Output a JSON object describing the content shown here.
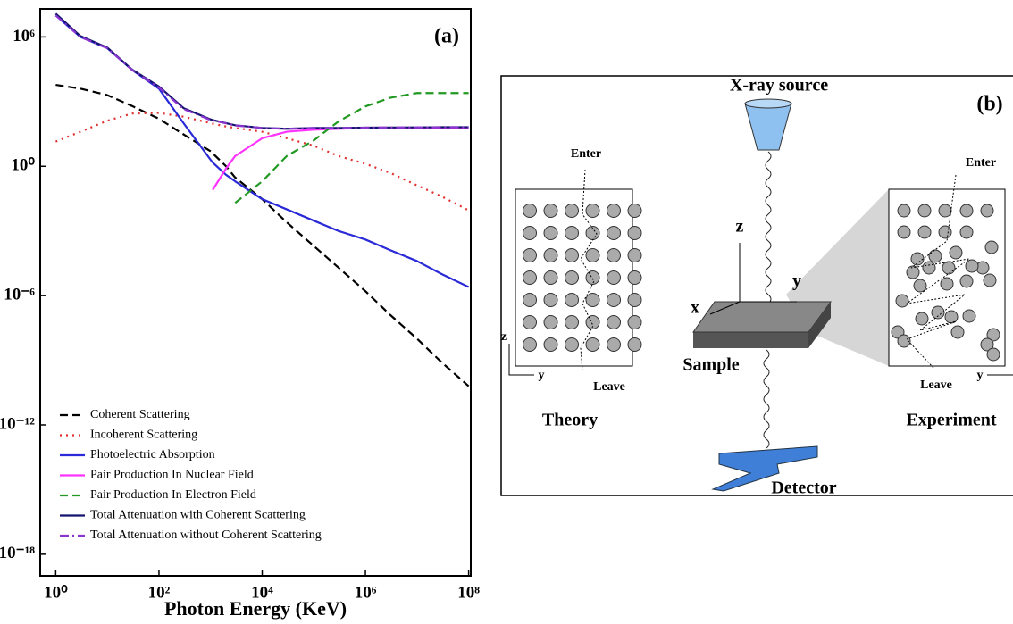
{
  "chart_data": {
    "type": "line",
    "label": "(a)",
    "xlabel": "Photon Energy (KeV)",
    "xscale": "log",
    "yscale": "log",
    "xlim": [
      0.5,
      110000000.0
    ],
    "ylim": [
      1e-19,
      20000000.0
    ],
    "xticks": [
      {
        "value": 1,
        "label": "10⁰"
      },
      {
        "value": 100,
        "label": "10²"
      },
      {
        "value": 10000,
        "label": "10⁴"
      },
      {
        "value": 1000000,
        "label": "10⁶"
      },
      {
        "value": 100000000,
        "label": "10⁸"
      }
    ],
    "yticks": [
      {
        "value": 1000000,
        "label": "10⁶"
      },
      {
        "value": 1,
        "label": "10⁰"
      },
      {
        "value": 1e-06,
        "label": "10⁻⁶"
      },
      {
        "value": 1e-12,
        "label": "10⁻¹²"
      },
      {
        "value": 1e-18,
        "label": "10⁻¹⁸"
      }
    ],
    "legend": "lower left",
    "x": [
      1,
      3,
      10,
      30,
      100,
      300,
      1000,
      1100,
      2000,
      3000,
      10000,
      30000,
      100000,
      300000,
      1000000,
      3000000,
      10000000,
      30000000,
      100000000
    ],
    "series": [
      {
        "name": "Coherent Scattering",
        "color": "#000000",
        "style": "dashed",
        "values": [
          6000,
          4000,
          2000,
          630,
          160,
          30,
          5,
          4,
          1,
          0.3,
          0.03,
          0.0025,
          0.0002,
          2e-05,
          1.6e-06,
          1.3e-07,
          1e-08,
          8e-10,
          6.3e-11
        ]
      },
      {
        "name": "Incoherent Scattering",
        "color": "#e03030",
        "style": "dotted",
        "values": [
          14,
          40,
          130,
          280,
          300,
          200,
          100,
          95,
          70,
          60,
          40,
          20,
          9,
          3,
          1.3,
          0.5,
          0.13,
          0.04,
          0.009
        ]
      },
      {
        "name": "Photoelectric Absorption",
        "color": "#2a2ad8",
        "style": "solid",
        "values": [
          10000000,
          1000000,
          300000,
          30000,
          4000,
          100,
          2,
          1.5,
          0.4,
          0.2,
          0.03,
          0.01,
          0.003,
          0.001,
          0.0004,
          0.00013,
          4e-05,
          1e-05,
          2.5e-06
        ]
      },
      {
        "name": "Pair Production In Nuclear Field",
        "color": "#ff33ff",
        "style": "solid",
        "values": [
          null,
          null,
          null,
          null,
          null,
          null,
          null,
          0.08,
          0.8,
          3,
          20,
          40,
          50,
          55,
          60,
          60,
          60,
          60,
          60
        ]
      },
      {
        "name": "Pair Production In Electron Field",
        "color": "#229922",
        "style": "dashed",
        "values": [
          null,
          null,
          null,
          null,
          null,
          null,
          null,
          null,
          null,
          0.02,
          0.2,
          3,
          16,
          120,
          600,
          1500,
          2500,
          2500,
          2500
        ]
      },
      {
        "name": "Total Attenuation with Coherent Scattering",
        "color": "#14146e",
        "style": "solid",
        "values": [
          12000000,
          1100000,
          320000,
          31000,
          5000,
          500,
          150,
          140,
          100,
          80,
          60,
          55,
          60,
          60,
          62,
          63,
          64,
          65,
          65
        ]
      },
      {
        "name": "Total Attenuation without Coherent Scattering",
        "color": "#8a35d0",
        "style": "dashdot",
        "values": [
          10000000,
          1000000,
          300000,
          30000,
          4500,
          450,
          140,
          135,
          98,
          78,
          60,
          55,
          60,
          60,
          62,
          63,
          64,
          65,
          65
        ]
      }
    ]
  },
  "panel_b": {
    "label": "(b)",
    "source": "X-ray source",
    "theory": {
      "enter": "Enter",
      "leave": "Leave",
      "axis_z": "z",
      "axis_y": "y",
      "title": "Theory"
    },
    "sample": {
      "axis_z": "z",
      "axis_y": "y",
      "axis_x": "x",
      "label": "Sample"
    },
    "experiment": {
      "enter": "Enter",
      "leave": "Leave",
      "axis_y": "y",
      "title": "Experiment"
    },
    "detector": "Detector"
  }
}
